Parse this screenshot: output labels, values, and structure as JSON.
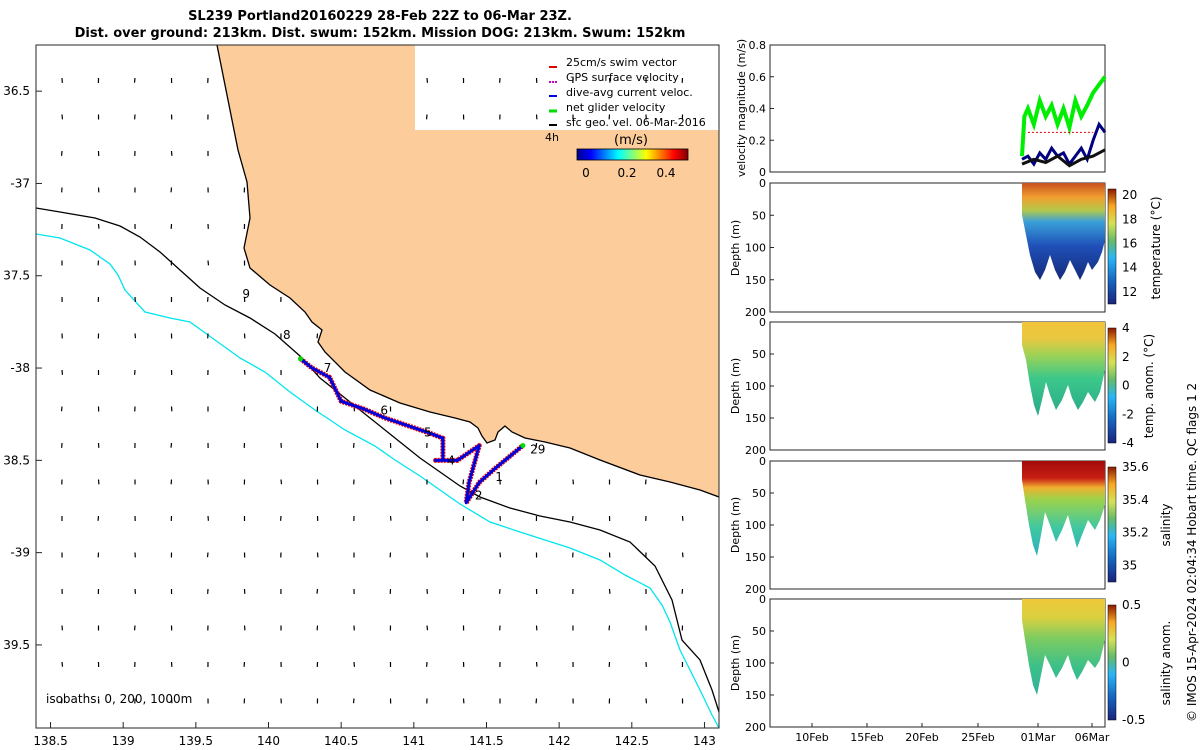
{
  "header": {
    "title_line1": "SL239 Portland20160229 28-Feb 22Z to 06-Mar 23Z.",
    "title_line2": "Dist. over ground: 213km. Dist. swum: 152km. Mission DOG: 213km. Swum: 152km"
  },
  "credit": "© IMOS 15-Apr-2024 02:04:34 Hobart time. QC flags 1  2",
  "colors": {
    "land": "#fccc9a",
    "isobath_0": "#000000",
    "isobath_200": "#000000",
    "isobath_1000": "#00e5ee",
    "swim_vector": "#e00000",
    "gps_velocity": "#cc00cc",
    "dive_avg": "#0000dd",
    "net_velocity": "#00dd00",
    "sfc_geo": "#000000"
  },
  "chart_data": [
    {
      "id": "map",
      "type": "scatter",
      "xlim": [
        138.4,
        143.1
      ],
      "ylim": [
        -39.95,
        -36.25
      ],
      "xticks": [
        138.5,
        139,
        139.5,
        140,
        140.5,
        141,
        141.5,
        142,
        142.5,
        143
      ],
      "xtick_labels": [
        "138.5",
        "139",
        "139.5",
        "140",
        "140.5",
        "141",
        "141.5",
        "142",
        "142.5",
        "143"
      ],
      "yticks": [
        -36.5,
        -37,
        -37.5,
        -38,
        -38.5,
        -39,
        -39.5
      ],
      "ytick_labels": [
        "36.5",
        "-37",
        "37.5",
        "-38",
        "38.5",
        "-39",
        "39.5"
      ],
      "legend": {
        "position": "top-right",
        "entries": [
          "25cm/s swim vector",
          "GPS surface velocity",
          "dive-avg current veloc.",
          "net glider velocity",
          "sfc geo. vel. 06-Mar-2016"
        ]
      },
      "colorbar": {
        "title": "(m/s)",
        "ticks": [
          "0",
          "0.2",
          "0.4"
        ],
        "range": [
          0,
          0.5
        ],
        "corner_label": "4h"
      },
      "isobath_label": "isobaths: 0, 200, 1000m",
      "track": [
        [
          140.22,
          -37.95
        ],
        [
          140.3,
          -38.0
        ],
        [
          140.42,
          -38.05
        ],
        [
          140.5,
          -38.18
        ],
        [
          140.65,
          -38.22
        ],
        [
          140.8,
          -38.27
        ],
        [
          140.95,
          -38.31
        ],
        [
          141.1,
          -38.35
        ],
        [
          141.2,
          -38.38
        ],
        [
          141.2,
          -38.5
        ],
        [
          141.15,
          -38.5
        ],
        [
          141.3,
          -38.5
        ],
        [
          141.45,
          -38.42
        ],
        [
          141.38,
          -38.62
        ],
        [
          141.36,
          -38.73
        ],
        [
          141.45,
          -38.62
        ],
        [
          141.55,
          -38.55
        ],
        [
          141.75,
          -38.42
        ]
      ],
      "labels": [
        {
          "text": "9",
          "lon": 139.82,
          "lat": -37.6
        },
        {
          "text": "8",
          "lon": 140.1,
          "lat": -37.82
        },
        {
          "text": "7",
          "lon": 140.38,
          "lat": -38.0
        },
        {
          "text": "6",
          "lon": 140.77,
          "lat": -38.23
        },
        {
          "text": "5",
          "lon": 141.07,
          "lat": -38.35
        },
        {
          "text": "4",
          "lon": 141.23,
          "lat": -38.5
        },
        {
          "text": "1",
          "lon": 141.56,
          "lat": -38.59
        },
        {
          "text": "2",
          "lon": 141.42,
          "lat": -38.69
        },
        {
          "text": "29",
          "lon": 141.8,
          "lat": -38.44
        }
      ]
    },
    {
      "id": "velocity",
      "type": "line",
      "ylabel": "velocity magnitude (m/s)",
      "ylim": [
        0,
        0.8
      ],
      "yticks": [
        "0",
        "0.2",
        "0.4",
        "0.6",
        "0.8"
      ],
      "xlim": [
        "05-Feb",
        "07-Mar"
      ],
      "series": [
        {
          "color": "#00ee00",
          "x": [
            0,
            0.2,
            0.5,
            1,
            1.5,
            2,
            2.5,
            3,
            3.5,
            4,
            4.5,
            5,
            5.5,
            6,
            6.5,
            7
          ],
          "values": [
            0.1,
            0.35,
            0.4,
            0.3,
            0.45,
            0.35,
            0.42,
            0.3,
            0.4,
            0.28,
            0.45,
            0.35,
            0.42,
            0.5,
            0.55,
            0.6
          ]
        },
        {
          "color": "#000080",
          "x": [
            0,
            0.5,
            1,
            1.5,
            2,
            2.5,
            3,
            3.5,
            4,
            4.5,
            5,
            5.5,
            6,
            6.5,
            7
          ],
          "values": [
            0.08,
            0.1,
            0.05,
            0.12,
            0.08,
            0.15,
            0.1,
            0.12,
            0.05,
            0.1,
            0.15,
            0.08,
            0.2,
            0.3,
            0.25
          ]
        },
        {
          "color": "#111111",
          "x": [
            0,
            1,
            2,
            3,
            4,
            5,
            6,
            7
          ],
          "values": [
            0.05,
            0.08,
            0.06,
            0.1,
            0.04,
            0.08,
            0.1,
            0.14
          ]
        },
        {
          "color": "#e00000",
          "x": [
            0.5,
            2,
            4,
            6
          ],
          "values": [
            0.25,
            0.25,
            0.25,
            0.25
          ]
        }
      ]
    },
    {
      "id": "temperature",
      "type": "heatmap",
      "ylabel": "Depth (m)",
      "ylim": [
        0,
        200
      ],
      "yticks": [
        "0",
        "50",
        "100",
        "150",
        "200"
      ],
      "colorbar": {
        "label": "temperature (°C)",
        "ticks": [
          "20",
          "18",
          "16",
          "14",
          "12"
        ],
        "range": [
          11,
          20.5
        ]
      }
    },
    {
      "id": "temp_anom",
      "type": "heatmap",
      "ylabel": "Depth (m)",
      "ylim": [
        0,
        200
      ],
      "yticks": [
        "0",
        "50",
        "100",
        "150",
        "200"
      ],
      "colorbar": {
        "label": "temp. anom. (°C)",
        "ticks": [
          "4",
          "2",
          "0",
          "-2",
          "-4"
        ],
        "range": [
          -4,
          4
        ]
      }
    },
    {
      "id": "salinity",
      "type": "heatmap",
      "ylabel": "Depth (m)",
      "ylim": [
        0,
        200
      ],
      "yticks": [
        "0",
        "50",
        "100",
        "150",
        "200"
      ],
      "colorbar": {
        "label": "salinity",
        "ticks": [
          "35.6",
          "35.4",
          "35.2",
          "35"
        ],
        "range": [
          34.9,
          35.6
        ]
      }
    },
    {
      "id": "sal_anom",
      "type": "heatmap",
      "ylabel": "Depth (m)",
      "ylim": [
        0,
        200
      ],
      "yticks": [
        "0",
        "50",
        "100",
        "150",
        "200"
      ],
      "xtick_labels": [
        "10Feb",
        "15Feb",
        "20Feb",
        "25Feb",
        "01Mar",
        "06Mar"
      ],
      "colorbar": {
        "label": "salinity anom.",
        "ticks": [
          "0.5",
          "0",
          "-0.5"
        ],
        "range": [
          -0.5,
          0.5
        ]
      }
    }
  ]
}
